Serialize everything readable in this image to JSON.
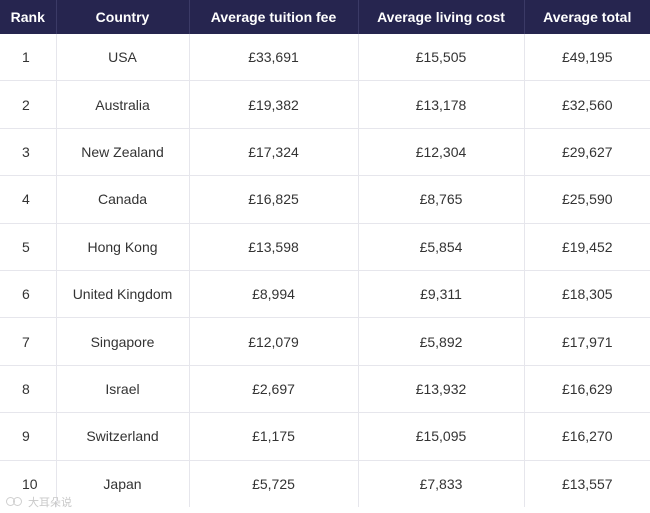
{
  "table": {
    "headers": [
      "Rank",
      "Country",
      "Average tuition fee",
      "Average living cost",
      "Average total"
    ],
    "rows": [
      [
        "1",
        "USA",
        "£33,691",
        "£15,505",
        "£49,195"
      ],
      [
        "2",
        "Australia",
        "£19,382",
        "£13,178",
        "£32,560"
      ],
      [
        "3",
        "New Zealand",
        "£17,324",
        "£12,304",
        "£29,627"
      ],
      [
        "4",
        "Canada",
        "£16,825",
        "£8,765",
        "£25,590"
      ],
      [
        "5",
        "Hong Kong",
        "£13,598",
        "£5,854",
        "£19,452"
      ],
      [
        "6",
        "United Kingdom",
        "£8,994",
        "£9,311",
        "£18,305"
      ],
      [
        "7",
        "Singapore",
        "£12,079",
        "£5,892",
        "£17,971"
      ],
      [
        "8",
        "Israel",
        "£2,697",
        "£13,932",
        "£16,629"
      ],
      [
        "9",
        "Switzerland",
        "£1,175",
        "£15,095",
        "£16,270"
      ],
      [
        "10",
        "Japan",
        "£5,725",
        "£7,833",
        "£13,557"
      ]
    ]
  },
  "watermark": {
    "text": "大耳朵说"
  },
  "colors": {
    "header_bg": "#26254f",
    "header_text": "#ffffff",
    "cell_text": "#333333",
    "grid": "#e6e6ec"
  }
}
